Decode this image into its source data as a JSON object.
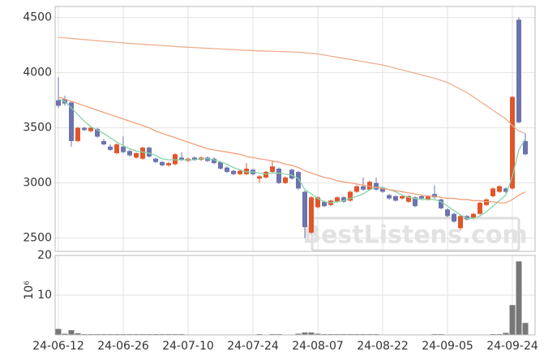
{
  "chart_data": {
    "type": "candlestick",
    "watermark": "BestListens.com",
    "up_color": "#e0562a",
    "down_color": "#6b74ad",
    "x": [
      "24-06-12",
      "24-06-13",
      "24-06-14",
      "24-06-17",
      "24-06-18",
      "24-06-19",
      "24-06-20",
      "24-06-21",
      "24-06-24",
      "24-06-25",
      "24-06-26",
      "24-06-27",
      "24-06-28",
      "24-07-01",
      "24-07-02",
      "24-07-03",
      "24-07-04",
      "24-07-05",
      "24-07-08",
      "24-07-09",
      "24-07-10",
      "24-07-11",
      "24-07-12",
      "24-07-15",
      "24-07-16",
      "24-07-17",
      "24-07-18",
      "24-07-19",
      "24-07-22",
      "24-07-23",
      "24-07-24",
      "24-07-25",
      "24-07-26",
      "24-07-29",
      "24-07-30",
      "24-07-31",
      "24-08-01",
      "24-08-02",
      "24-08-05",
      "24-08-06",
      "24-08-07",
      "24-08-08",
      "24-08-09",
      "24-08-12",
      "24-08-13",
      "24-08-14",
      "24-08-16",
      "24-08-19",
      "24-08-20",
      "24-08-21",
      "24-08-22",
      "24-08-23",
      "24-08-26",
      "24-08-27",
      "24-08-28",
      "24-08-29",
      "24-08-30",
      "24-09-02",
      "24-09-03",
      "24-09-04",
      "24-09-05",
      "24-09-06",
      "24-09-09",
      "24-09-10",
      "24-09-11",
      "24-09-12",
      "24-09-13",
      "24-09-19",
      "24-09-20",
      "24-09-23",
      "24-09-24",
      "24-09-25",
      "24-09-26"
    ],
    "open": [
      3750,
      3760,
      3730,
      3380,
      3500,
      3470,
      3490,
      3380,
      3330,
      3270,
      3330,
      3290,
      3230,
      3220,
      3320,
      3220,
      3190,
      3160,
      3170,
      3230,
      3200,
      3230,
      3210,
      3230,
      3220,
      3190,
      3140,
      3110,
      3080,
      3080,
      3120,
      3040,
      3050,
      3100,
      3130,
      3000,
      3120,
      3100,
      2920,
      2550,
      2780,
      2830,
      2800,
      2830,
      2870,
      2840,
      2920,
      2970,
      2940,
      3000,
      2960,
      2890,
      2880,
      2860,
      2830,
      2870,
      2880,
      2850,
      2900,
      2850,
      2760,
      2720,
      2590,
      2700,
      2680,
      2720,
      2800,
      2880,
      2920,
      2950,
      2950,
      4480,
      3380
    ],
    "high": [
      3960,
      3790,
      3740,
      3510,
      3510,
      3510,
      3500,
      3400,
      3350,
      3360,
      3420,
      3300,
      3280,
      3330,
      3330,
      3230,
      3200,
      3190,
      3270,
      3280,
      3230,
      3240,
      3240,
      3240,
      3230,
      3200,
      3150,
      3120,
      3120,
      3180,
      3130,
      3070,
      3110,
      3200,
      3140,
      3060,
      3130,
      3110,
      2930,
      2880,
      2880,
      2840,
      2850,
      2880,
      2880,
      2930,
      2980,
      3050,
      3020,
      3050,
      2970,
      2900,
      2890,
      2890,
      2890,
      2880,
      2890,
      2890,
      2980,
      2860,
      2770,
      2730,
      2710,
      2710,
      2730,
      2830,
      2860,
      2960,
      2980,
      2960,
      3790,
      4500,
      3450
    ],
    "low": [
      3680,
      3700,
      3330,
      3370,
      3470,
      3460,
      3410,
      3340,
      3290,
      3260,
      3270,
      3240,
      3220,
      3210,
      3230,
      3180,
      3150,
      3150,
      3160,
      3200,
      3190,
      3200,
      3200,
      3190,
      3170,
      3120,
      3090,
      3070,
      3070,
      3070,
      3070,
      3000,
      3040,
      3090,
      2990,
      2990,
      3030,
      2940,
      2500,
      2540,
      2770,
      2780,
      2790,
      2820,
      2820,
      2830,
      2910,
      2930,
      2930,
      2930,
      2910,
      2850,
      2830,
      2850,
      2820,
      2780,
      2850,
      2840,
      2860,
      2760,
      2690,
      2640,
      2570,
      2660,
      2670,
      2710,
      2790,
      2870,
      2910,
      2910,
      2940,
      3540,
      3250
    ],
    "close": [
      3700,
      3720,
      3380,
      3500,
      3480,
      3500,
      3420,
      3350,
      3300,
      3350,
      3280,
      3250,
      3270,
      3320,
      3240,
      3190,
      3160,
      3180,
      3260,
      3210,
      3220,
      3210,
      3230,
      3200,
      3180,
      3130,
      3100,
      3080,
      3110,
      3130,
      3080,
      3060,
      3100,
      3150,
      3000,
      3050,
      3040,
      2950,
      2600,
      2870,
      2870,
      2790,
      2840,
      2870,
      2830,
      2920,
      2970,
      2940,
      3010,
      2940,
      2920,
      2860,
      2840,
      2880,
      2880,
      2790,
      2860,
      2880,
      2870,
      2770,
      2700,
      2650,
      2700,
      2670,
      2720,
      2820,
      2850,
      2950,
      2970,
      2920,
      3780,
      3550,
      3260
    ],
    "series": [
      {
        "color": "#86d3aa",
        "values": [
          3760,
          3740,
          3680,
          3620,
          3560,
          3510,
          3480,
          3450,
          3410,
          3370,
          3340,
          3310,
          3290,
          3280,
          3270,
          3250,
          3220,
          3210,
          3210,
          3210,
          3210,
          3210,
          3220,
          3220,
          3210,
          3190,
          3170,
          3140,
          3120,
          3100,
          3100,
          3090,
          3080,
          3090,
          3090,
          3080,
          3070,
          3040,
          2940,
          2900,
          2860,
          2830,
          2820,
          2830,
          2840,
          2860,
          2880,
          2900,
          2940,
          2960,
          2960,
          2940,
          2920,
          2890,
          2870,
          2860,
          2850,
          2850,
          2850,
          2830,
          2790,
          2750,
          2710,
          2680,
          2680,
          2700,
          2740,
          2790,
          2840,
          2890,
          3060,
          3300,
          3400
        ]
      },
      {
        "color": "#f0a07a",
        "values": [
          3780,
          3760,
          3740,
          3720,
          3700,
          3680,
          3660,
          3640,
          3620,
          3600,
          3580,
          3560,
          3540,
          3520,
          3500,
          3470,
          3450,
          3430,
          3410,
          3390,
          3370,
          3350,
          3330,
          3310,
          3300,
          3290,
          3280,
          3270,
          3260,
          3240,
          3230,
          3220,
          3210,
          3200,
          3190,
          3170,
          3160,
          3140,
          3110,
          3090,
          3070,
          3050,
          3040,
          3020,
          3010,
          3000,
          2990,
          2980,
          2970,
          2960,
          2950,
          2940,
          2930,
          2920,
          2910,
          2900,
          2890,
          2880,
          2880,
          2870,
          2860,
          2860,
          2850,
          2850,
          2840,
          2840,
          2830,
          2830,
          2820,
          2820,
          2850,
          2890,
          2920
        ]
      },
      {
        "color": "#efae8e",
        "values": [
          4320,
          4315,
          4310,
          4305,
          4300,
          4295,
          4290,
          4285,
          4280,
          4275,
          4270,
          4266,
          4262,
          4258,
          4254,
          4250,
          4246,
          4242,
          4238,
          4234,
          4230,
          4227,
          4224,
          4221,
          4218,
          4215,
          4212,
          4209,
          4206,
          4203,
          4200,
          4198,
          4196,
          4194,
          4192,
          4190,
          4188,
          4185,
          4180,
          4175,
          4170,
          4160,
          4150,
          4140,
          4130,
          4120,
          4110,
          4100,
          4090,
          4080,
          4070,
          4055,
          4040,
          4025,
          4010,
          3995,
          3980,
          3965,
          3950,
          3930,
          3910,
          3880,
          3850,
          3820,
          3780,
          3740,
          3700,
          3660,
          3620,
          3580,
          3520,
          3470,
          3450
        ]
      }
    ],
    "ylim": [
      2380,
      4600
    ],
    "yticks": [
      2500,
      3000,
      3500,
      4000,
      4500
    ],
    "xticks": [
      "24-06-12",
      "24-06-26",
      "24-07-10",
      "24-07-24",
      "24-08-07",
      "24-08-22",
      "24-09-05",
      "24-09-24"
    ],
    "grid": true,
    "volume": {
      "color": "#777777",
      "ylabel": "10⁶",
      "ylim": [
        0,
        20
      ],
      "yticks": [
        10,
        20
      ],
      "values": [
        1.5,
        0.3,
        1.2,
        0.4,
        0.2,
        0.2,
        0.2,
        0.2,
        0.2,
        0.2,
        0.2,
        0.2,
        0.2,
        0.2,
        0.2,
        0.2,
        0.2,
        0.2,
        0.2,
        0.2,
        0.1,
        0.1,
        0.1,
        0.1,
        0.1,
        0.1,
        0.1,
        0.1,
        0.1,
        0.1,
        0.1,
        0.2,
        0.1,
        0.2,
        0.2,
        0.1,
        0.1,
        0.3,
        0.6,
        0.6,
        0.3,
        0.2,
        0.2,
        0.2,
        0.2,
        0.2,
        0.2,
        0.2,
        0.2,
        0.2,
        0.1,
        0.1,
        0.1,
        0.1,
        0.1,
        0.1,
        0.1,
        0.1,
        0.2,
        0.2,
        0.1,
        0.1,
        0.1,
        0.1,
        0.1,
        0.1,
        0.1,
        0.2,
        0.2,
        0.5,
        7.5,
        18.5,
        3.0
      ]
    }
  }
}
